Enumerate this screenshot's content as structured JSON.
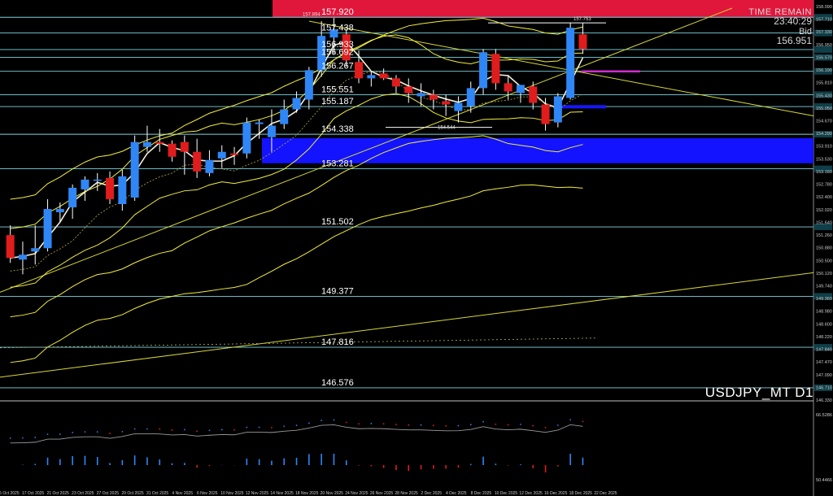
{
  "chart_data": {
    "type": "candlestick",
    "symbol": "USDJPY_MT D1",
    "time_remain_label": "TIME REMAIN",
    "time_remain": "23:40:29",
    "bid_label": "Bid",
    "bid_value": "156.951",
    "ylim": [
      146.2,
      158.2
    ],
    "x_labels": [
      "15 Oct 2025",
      "17 Oct 2025",
      "21 Oct 2025",
      "23 Oct 2025",
      "27 Oct 2025",
      "29 Oct 2025",
      "31 Oct 2025",
      "4 Nov 2025",
      "6 Nov 2025",
      "10 Nov 2025",
      "12 Nov 2025",
      "14 Nov 2025",
      "18 Nov 2025",
      "20 Nov 2025",
      "24 Nov 2025",
      "26 Nov 2025",
      "28 Nov 2025",
      "2 Dec 2025",
      "4 Dec 2025",
      "8 Dec 2025",
      "10 Dec 2025",
      "12 Dec 2025",
      "16 Dec 2025",
      "18 Dec 2025",
      "22 Dec 2025"
    ],
    "price_levels": [
      157.92,
      157.438,
      156.933,
      156.692,
      156.267,
      155.551,
      155.187,
      154.338,
      153.281,
      151.502,
      149.377,
      147.816,
      146.576
    ],
    "annotations": [
      "157.894",
      "157.753",
      "154.544"
    ],
    "right_scale": [
      "158.090",
      "157.710",
      "157.330",
      "156.950",
      "156.570",
      "156.190",
      "155.810",
      "155.430",
      "155.050",
      "154.670",
      "154.290",
      "153.910",
      "153.530",
      "153.160",
      "152.780",
      "152.400",
      "152.020",
      "151.640",
      "151.260",
      "150.880",
      "150.500",
      "150.120",
      "149.740",
      "149.360",
      "148.980",
      "148.600",
      "148.220",
      "147.840",
      "147.470",
      "147.090",
      "146.710",
      "146.330"
    ],
    "indicator_scale": [
      "66.5286",
      "50.4466"
    ],
    "candles": [
      {
        "o": 151.25,
        "h": 151.55,
        "l": 150.4,
        "c": 150.55
      },
      {
        "o": 150.5,
        "h": 151.05,
        "l": 150.05,
        "c": 150.65
      },
      {
        "o": 150.75,
        "h": 151.55,
        "l": 150.35,
        "c": 150.85
      },
      {
        "o": 150.85,
        "h": 152.35,
        "l": 150.75,
        "c": 152.05
      },
      {
        "o": 151.95,
        "h": 152.25,
        "l": 151.65,
        "c": 152.05
      },
      {
        "o": 152.1,
        "h": 152.8,
        "l": 151.75,
        "c": 152.7
      },
      {
        "o": 152.65,
        "h": 153.05,
        "l": 152.3,
        "c": 152.95
      },
      {
        "o": 152.95,
        "h": 153.15,
        "l": 152.6,
        "c": 152.95
      },
      {
        "o": 153.0,
        "h": 153.2,
        "l": 152.2,
        "c": 152.35
      },
      {
        "o": 152.2,
        "h": 153.25,
        "l": 152.0,
        "c": 153.05
      },
      {
        "o": 152.4,
        "h": 154.3,
        "l": 152.3,
        "c": 154.1
      },
      {
        "o": 153.95,
        "h": 154.6,
        "l": 153.8,
        "c": 154.1
      },
      {
        "o": 154.1,
        "h": 154.5,
        "l": 153.8,
        "c": 154.05
      },
      {
        "o": 154.05,
        "h": 154.15,
        "l": 153.5,
        "c": 153.65
      },
      {
        "o": 154.1,
        "h": 154.3,
        "l": 153.1,
        "c": 153.8
      },
      {
        "o": 153.8,
        "h": 154.2,
        "l": 153.0,
        "c": 153.2
      },
      {
        "o": 153.15,
        "h": 153.85,
        "l": 153.05,
        "c": 153.55
      },
      {
        "o": 153.6,
        "h": 154.0,
        "l": 153.3,
        "c": 153.8
      },
      {
        "o": 153.75,
        "h": 153.95,
        "l": 153.4,
        "c": 153.7
      },
      {
        "o": 153.75,
        "h": 154.85,
        "l": 153.6,
        "c": 154.7
      },
      {
        "o": 154.65,
        "h": 154.8,
        "l": 154.2,
        "c": 154.7
      },
      {
        "o": 154.25,
        "h": 155.1,
        "l": 153.8,
        "c": 154.6
      },
      {
        "o": 154.65,
        "h": 155.4,
        "l": 154.5,
        "c": 155.1
      },
      {
        "o": 155.1,
        "h": 155.65,
        "l": 155.0,
        "c": 155.45
      },
      {
        "o": 155.4,
        "h": 156.4,
        "l": 155.1,
        "c": 156.3
      },
      {
        "o": 156.3,
        "h": 157.8,
        "l": 156.1,
        "c": 157.35
      },
      {
        "o": 157.3,
        "h": 157.9,
        "l": 156.8,
        "c": 157.55
      },
      {
        "o": 157.4,
        "h": 157.55,
        "l": 156.4,
        "c": 156.6
      },
      {
        "o": 156.55,
        "h": 156.9,
        "l": 155.9,
        "c": 156.05
      },
      {
        "o": 156.05,
        "h": 156.25,
        "l": 155.8,
        "c": 156.15
      },
      {
        "o": 156.2,
        "h": 156.35,
        "l": 156.0,
        "c": 156.05
      },
      {
        "o": 156.05,
        "h": 156.15,
        "l": 155.6,
        "c": 155.8
      },
      {
        "o": 155.8,
        "h": 156.05,
        "l": 155.3,
        "c": 155.6
      },
      {
        "o": 155.5,
        "h": 155.9,
        "l": 155.2,
        "c": 155.6
      },
      {
        "o": 155.55,
        "h": 155.7,
        "l": 155.1,
        "c": 155.4
      },
      {
        "o": 155.35,
        "h": 155.55,
        "l": 154.9,
        "c": 155.25
      },
      {
        "o": 155.05,
        "h": 155.5,
        "l": 154.7,
        "c": 155.3
      },
      {
        "o": 155.2,
        "h": 155.95,
        "l": 155.0,
        "c": 155.75
      },
      {
        "o": 155.75,
        "h": 156.95,
        "l": 155.55,
        "c": 156.85
      },
      {
        "o": 156.8,
        "h": 156.95,
        "l": 155.7,
        "c": 155.9
      },
      {
        "o": 155.9,
        "h": 156.15,
        "l": 155.4,
        "c": 155.65
      },
      {
        "o": 155.6,
        "h": 155.85,
        "l": 155.3,
        "c": 155.85
      },
      {
        "o": 155.8,
        "h": 155.95,
        "l": 155.1,
        "c": 155.3
      },
      {
        "o": 155.25,
        "h": 155.45,
        "l": 154.45,
        "c": 154.65
      },
      {
        "o": 154.7,
        "h": 155.6,
        "l": 154.55,
        "c": 155.5
      },
      {
        "o": 155.45,
        "h": 157.75,
        "l": 155.4,
        "c": 157.6
      },
      {
        "o": 157.4,
        "h": 157.75,
        "l": 156.8,
        "c": 156.95
      }
    ],
    "colors": {
      "up": "#2f86f6",
      "down": "#e01c1c",
      "zone": "#1313ff",
      "top_band": "#e0163a",
      "ma": "#f2ee3a"
    }
  }
}
